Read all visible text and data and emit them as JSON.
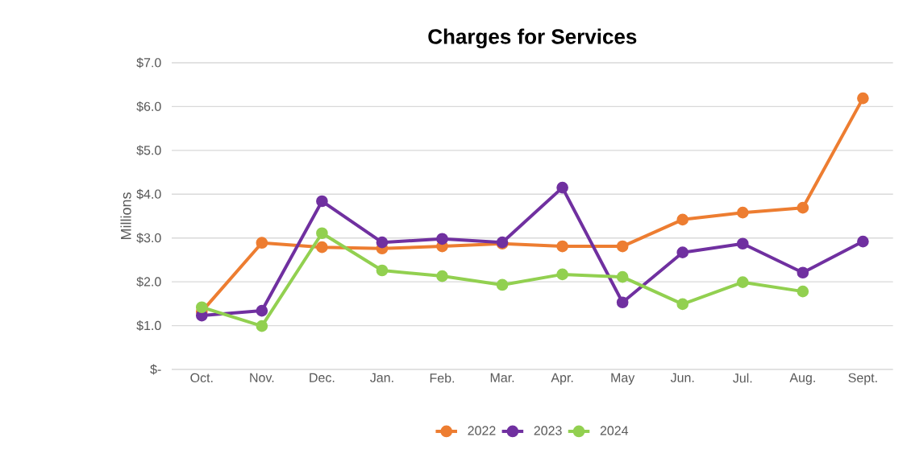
{
  "chart_data": {
    "type": "line",
    "title": "Charges for Services",
    "ylabel": "Millions",
    "categories": [
      "Oct.",
      "Nov.",
      "Dec.",
      "Jan.",
      "Feb.",
      "Mar.",
      "Apr.",
      "May",
      "Jun.",
      "Jul.",
      "Aug.",
      "Sept."
    ],
    "series": [
      {
        "name": "2022",
        "color": "#ed7d31",
        "values": [
          1.32,
          2.89,
          2.79,
          2.76,
          2.81,
          2.87,
          2.81,
          2.81,
          3.42,
          3.58,
          3.69,
          6.19
        ]
      },
      {
        "name": "2023",
        "color": "#7030a0",
        "values": [
          1.23,
          1.34,
          3.84,
          2.9,
          2.98,
          2.9,
          4.15,
          1.53,
          2.67,
          2.87,
          2.21,
          2.92
        ]
      },
      {
        "name": "2024",
        "color": "#92d050",
        "values": [
          1.42,
          0.99,
          3.11,
          2.26,
          2.13,
          1.93,
          2.17,
          2.11,
          1.49,
          1.99,
          1.78,
          null
        ]
      }
    ],
    "ylim": [
      0,
      7
    ],
    "yticks": [
      {
        "value": 0,
        "label": "$-"
      },
      {
        "value": 1,
        "label": "$1.0"
      },
      {
        "value": 2,
        "label": "$2.0"
      },
      {
        "value": 3,
        "label": "$3.0"
      },
      {
        "value": 4,
        "label": "$4.0"
      },
      {
        "value": 5,
        "label": "$5.0"
      },
      {
        "value": 6,
        "label": "$6.0"
      },
      {
        "value": 7,
        "label": "$7.0"
      }
    ],
    "grid": "y",
    "legend": "bottom",
    "marker": "circle",
    "line_style": "solid"
  }
}
